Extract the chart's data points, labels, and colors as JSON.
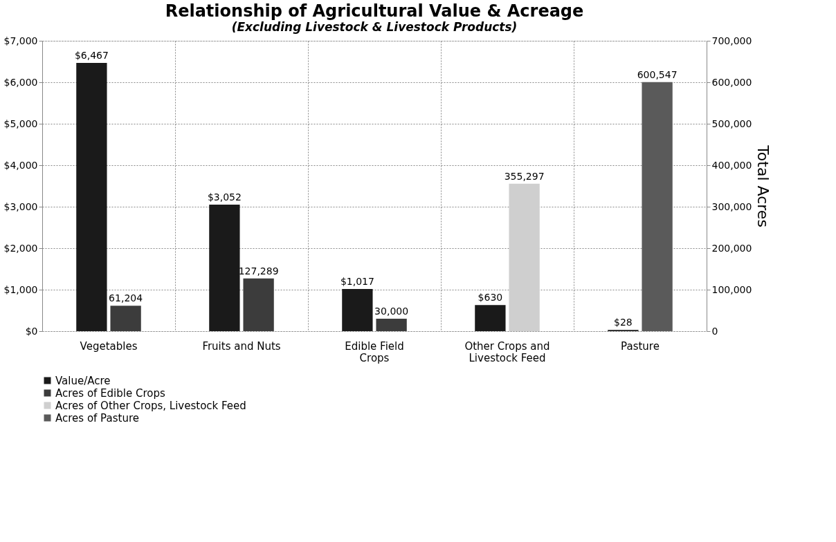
{
  "chart_data": {
    "type": "bar",
    "title": "Relationship of Agricultural Value & Acreage",
    "subtitle": "(Excluding Livestock & Livestock Products)",
    "y2label": "Total Acres",
    "categories": [
      "Vegetables",
      "Fruits and Nuts",
      "Edible Field Crops",
      "Other Crops and Livestock Feed",
      "Pasture"
    ],
    "series": [
      {
        "name": "Value/Acre",
        "color": "#1a1a1a",
        "values": [
          6467,
          3052,
          1017,
          630,
          28
        ],
        "value_labels": [
          "$6,467",
          "$3,052",
          "$1,017",
          "$630",
          "$28"
        ]
      },
      {
        "name": "Acres of Edible Crops",
        "color": "#3c3c3c",
        "axis": "y2",
        "values": [
          61204,
          127289,
          30000,
          null,
          null
        ],
        "value_labels": [
          "61,204",
          "127,289",
          "30,000",
          null,
          null
        ]
      },
      {
        "name": "Acres of Other Crops, Livestock Feed",
        "color": "#cfcfcf",
        "axis": "y2",
        "values": [
          null,
          null,
          null,
          355297,
          null
        ],
        "value_labels": [
          null,
          null,
          null,
          "355,297",
          null
        ]
      },
      {
        "name": "Acres of Pasture",
        "color": "#5a5a5a",
        "axis": "y2",
        "values": [
          null,
          null,
          null,
          null,
          600547
        ],
        "value_labels": [
          null,
          null,
          null,
          null,
          "600,547"
        ]
      }
    ],
    "ylim": [
      0,
      7000
    ],
    "yticks": [
      {
        "value": 0,
        "label": "$0"
      },
      {
        "value": 1000,
        "label": "$1,000"
      },
      {
        "value": 2000,
        "label": "$2,000"
      },
      {
        "value": 3000,
        "label": "$3,000"
      },
      {
        "value": 4000,
        "label": "$4,000"
      },
      {
        "value": 5000,
        "label": "$5,000"
      },
      {
        "value": 6000,
        "label": "$6,000"
      },
      {
        "value": 7000,
        "label": "$7,000"
      }
    ],
    "y2lim": [
      0,
      700000
    ],
    "y2ticks": [
      0,
      {
        "value": 100000,
        "label": "100,000"
      },
      {
        "value": 200000,
        "label": "200,000"
      },
      {
        "value": 300000,
        "label": "300,000"
      },
      {
        "value": 400000,
        "label": "400,000"
      },
      {
        "value": 500000,
        "label": "500,000"
      },
      {
        "value": 600000,
        "label": "600,000"
      },
      {
        "value": 700000,
        "label": "700,000"
      }
    ],
    "grid": true,
    "legend": "bottom left"
  }
}
